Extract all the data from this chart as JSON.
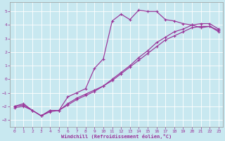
{
  "xlabel": "Windchill (Refroidissement éolien,°C)",
  "xlim": [
    -0.5,
    23.5
  ],
  "ylim": [
    -3.5,
    5.7
  ],
  "xticks": [
    0,
    1,
    2,
    3,
    4,
    5,
    6,
    7,
    8,
    9,
    10,
    11,
    12,
    13,
    14,
    15,
    16,
    17,
    18,
    19,
    20,
    21,
    22,
    23
  ],
  "yticks": [
    -3,
    -2,
    -1,
    0,
    1,
    2,
    3,
    4,
    5
  ],
  "bg_color": "#c8e8f0",
  "line_color": "#993399",
  "grid_color": "#ffffff",
  "line1_x": [
    0,
    1,
    2,
    3,
    4,
    5,
    6,
    7,
    8,
    9,
    10,
    11,
    12,
    13,
    14,
    15,
    16,
    17,
    18,
    19,
    20,
    21,
    22,
    23
  ],
  "line1_y": [
    -2.0,
    -1.8,
    -2.3,
    -2.7,
    -2.3,
    -2.3,
    -1.3,
    -1.0,
    -0.7,
    0.8,
    1.5,
    4.3,
    4.8,
    4.4,
    5.1,
    5.0,
    5.0,
    4.4,
    4.3,
    4.1,
    4.0,
    3.8,
    3.9,
    3.5
  ],
  "line2_x": [
    0,
    1,
    2,
    3,
    4,
    5,
    6,
    7,
    8,
    9,
    10,
    11,
    12,
    13,
    14,
    15,
    16,
    17,
    18,
    19,
    20,
    21,
    22,
    23
  ],
  "line2_y": [
    -2.0,
    -1.9,
    -2.3,
    -2.7,
    -2.3,
    -2.3,
    -1.8,
    -1.4,
    -1.1,
    -0.8,
    -0.5,
    -0.1,
    0.4,
    0.9,
    1.4,
    1.9,
    2.4,
    2.9,
    3.2,
    3.5,
    3.8,
    3.9,
    3.9,
    3.6
  ],
  "line3_x": [
    0,
    1,
    2,
    3,
    4,
    5,
    6,
    7,
    8,
    9,
    10,
    11,
    12,
    13,
    14,
    15,
    16,
    17,
    18,
    19,
    20,
    21,
    22,
    23
  ],
  "line3_y": [
    -2.1,
    -2.0,
    -2.3,
    -2.7,
    -2.4,
    -2.3,
    -1.9,
    -1.5,
    -1.2,
    -0.9,
    -0.5,
    0.0,
    0.5,
    1.0,
    1.6,
    2.1,
    2.7,
    3.1,
    3.5,
    3.7,
    4.0,
    4.1,
    4.1,
    3.7
  ]
}
